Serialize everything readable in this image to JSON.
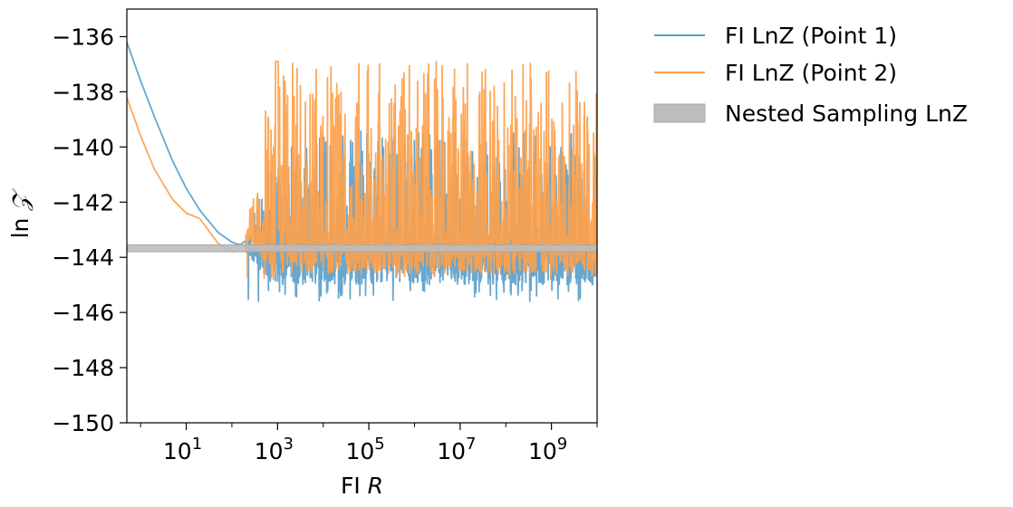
{
  "chart_data": {
    "type": "line",
    "title": "",
    "xlabel": "FI",
    "xlabel_italic": "R",
    "ylabel": "ln",
    "ylabel_symbol": "𝒵",
    "x_scale": "log",
    "xlim": [
      0.5,
      10000000000.0
    ],
    "ylim": [
      -150,
      -135
    ],
    "x_ticks": [
      {
        "value": 10,
        "base": "10",
        "exp": "1"
      },
      {
        "value": 1000,
        "base": "10",
        "exp": "3"
      },
      {
        "value": 100000,
        "base": "10",
        "exp": "5"
      },
      {
        "value": 10000000,
        "base": "10",
        "exp": "7"
      },
      {
        "value": 1000000000,
        "base": "10",
        "exp": "9"
      }
    ],
    "y_ticks": [
      {
        "value": -136,
        "label": "−136"
      },
      {
        "value": -138,
        "label": "−138"
      },
      {
        "value": -140,
        "label": "−140"
      },
      {
        "value": -142,
        "label": "−142"
      },
      {
        "value": -144,
        "label": "−144"
      },
      {
        "value": -146,
        "label": "−146"
      },
      {
        "value": -148,
        "label": "−148"
      },
      {
        "value": -150,
        "label": "−150"
      }
    ],
    "grid": false,
    "legend_position": "outside-right",
    "series": [
      {
        "name": "FI LnZ (Point 1)",
        "color": "#5b9fcb",
        "smooth_x": [
          0.5,
          1,
          2,
          5,
          10,
          20,
          50,
          100,
          150,
          200
        ],
        "smooth_y": [
          -136.2,
          -137.6,
          -138.9,
          -140.5,
          -141.5,
          -142.3,
          -143.1,
          -143.45,
          -143.55,
          -143.4
        ],
        "noise_start": 200,
        "noise_center": -143.8,
        "noise_low": -145.0,
        "noise_high": -139.4,
        "noise_min": -145.6
      },
      {
        "name": "FI LnZ (Point 2)",
        "color": "#fda14c",
        "smooth_x": [
          0.5,
          1,
          2,
          5,
          10,
          20,
          30,
          50,
          100,
          200
        ],
        "smooth_y": [
          -138.2,
          -139.6,
          -140.8,
          -141.9,
          -142.4,
          -142.6,
          -143.0,
          -143.5,
          -143.8,
          -143.75
        ],
        "noise_start": 200,
        "noise_center": -143.2,
        "noise_low": -144.6,
        "noise_high": -136.9,
        "noise_min": -144.8
      }
    ],
    "bands": [
      {
        "name": "Nested Sampling LnZ",
        "color": "#bdbdbd",
        "edge_color": "#a8a8a8",
        "y_low": -143.8,
        "y_high": -143.55
      }
    ]
  }
}
